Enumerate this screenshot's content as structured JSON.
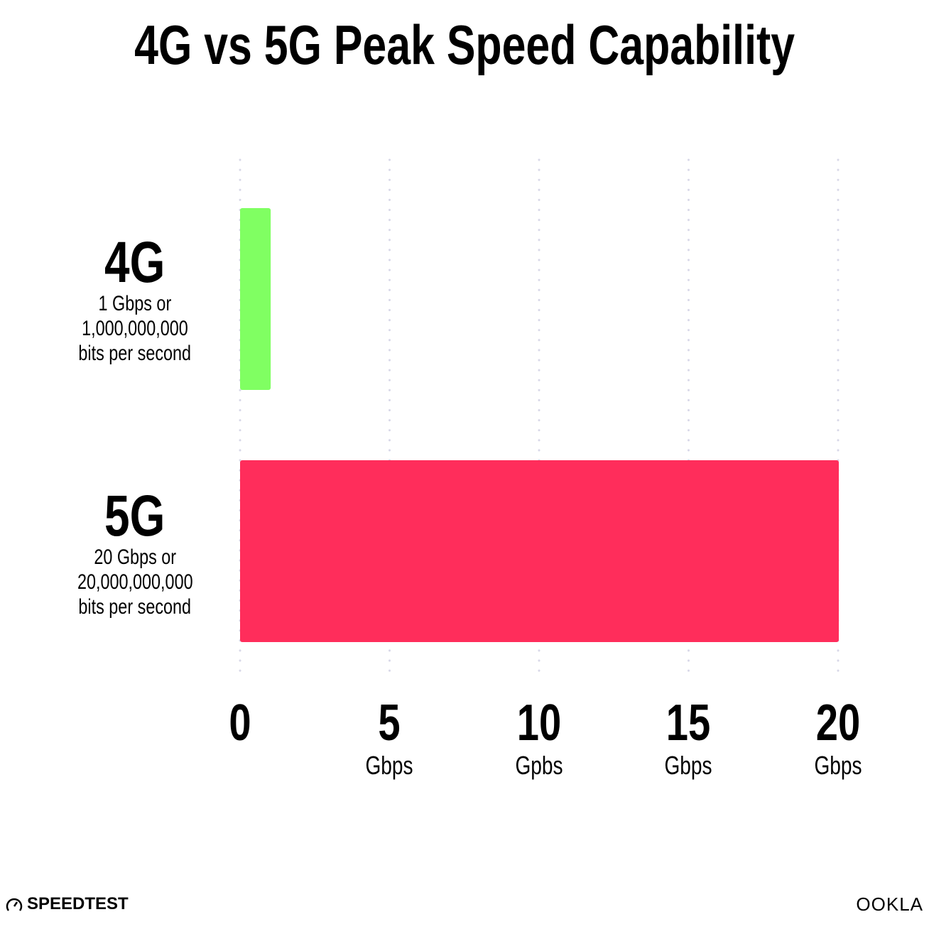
{
  "chart_data": {
    "type": "bar",
    "orientation": "horizontal",
    "title": "4G vs 5G Peak Speed Capability",
    "categories": [
      {
        "name": "4G",
        "lines": [
          "1 Gbps or",
          "1,000,000,000",
          "bits per second"
        ]
      },
      {
        "name": "5G",
        "lines": [
          "20 Gbps or",
          "20,000,000,000",
          "bits per second"
        ]
      }
    ],
    "values": [
      1,
      20
    ],
    "colors": [
      "#80FF62",
      "#FF2D5B"
    ],
    "xlim": [
      0,
      20
    ],
    "xticks": [
      {
        "value": 0,
        "label": "0",
        "unit": ""
      },
      {
        "value": 5,
        "label": "5",
        "unit": "Gbps"
      },
      {
        "value": 10,
        "label": "10",
        "unit": "Gpbs"
      },
      {
        "value": 15,
        "label": "15",
        "unit": "Gbps"
      },
      {
        "value": 20,
        "label": "20",
        "unit": "Gbps"
      }
    ],
    "grid": "vertical dotted",
    "gridColor": "#D8D8E8"
  },
  "branding": {
    "left_logo": "SPEEDTEST",
    "right_logo": "OOKLA"
  }
}
